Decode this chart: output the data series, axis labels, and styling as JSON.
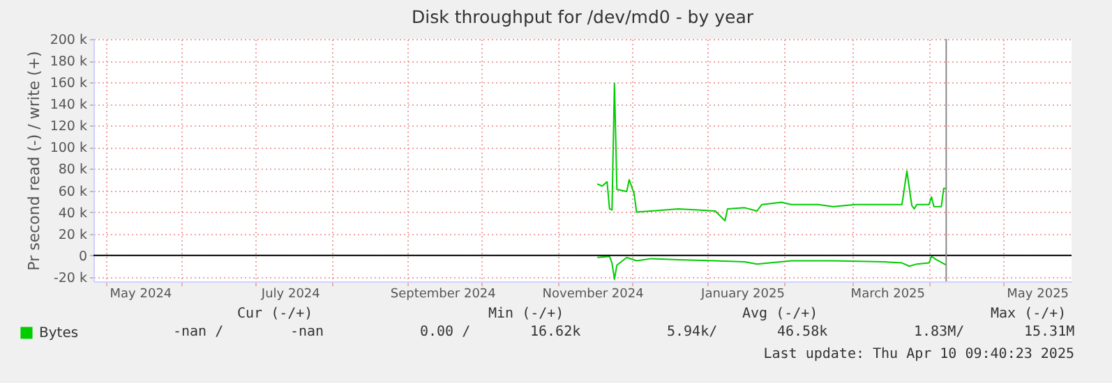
{
  "chart_data": {
    "type": "line",
    "title": "Disk throughput for /dev/md0 - by year",
    "ylabel": "Pr second read (-) / write (+)",
    "xlim": [
      "2024-04-26",
      "2025-05-29"
    ],
    "xticks": [
      {
        "value": "2024-05-01",
        "label": null
      },
      {
        "value": "2024-05-15",
        "label": "May 2024"
      },
      {
        "value": "2024-06-01",
        "label": null
      },
      {
        "value": "2024-07-01",
        "label": null
      },
      {
        "value": "2024-07-15",
        "label": "July 2024"
      },
      {
        "value": "2024-08-01",
        "label": null
      },
      {
        "value": "2024-09-01",
        "label": null
      },
      {
        "value": "2024-09-15",
        "label": "September 2024"
      },
      {
        "value": "2024-10-01",
        "label": null
      },
      {
        "value": "2024-11-01",
        "label": null
      },
      {
        "value": "2024-11-15",
        "label": "November 2024"
      },
      {
        "value": "2024-12-01",
        "label": null
      },
      {
        "value": "2025-01-01",
        "label": null
      },
      {
        "value": "2025-01-15",
        "label": "January 2025"
      },
      {
        "value": "2025-02-01",
        "label": null
      },
      {
        "value": "2025-03-01",
        "label": null
      },
      {
        "value": "2025-03-15",
        "label": "March 2025"
      },
      {
        "value": "2025-04-01",
        "label": null
      },
      {
        "value": "2025-05-01",
        "label": null
      },
      {
        "value": "2025-05-15",
        "label": "May 2025"
      }
    ],
    "ylim": [
      -24000,
      200000
    ],
    "yticks": [
      {
        "value": -20000,
        "label": "-20 k"
      },
      0,
      {
        "value": 20000,
        "label": "20 k"
      },
      {
        "value": 40000,
        "label": "40 k"
      },
      {
        "value": 60000,
        "label": "60 k"
      },
      {
        "value": 80000,
        "label": "80 k"
      },
      {
        "value": 100000,
        "label": "100 k"
      },
      {
        "value": 120000,
        "label": "120 k"
      },
      {
        "value": 140000,
        "label": "140 k"
      },
      {
        "value": 160000,
        "label": "160 k"
      },
      {
        "value": 180000,
        "label": "180 k"
      },
      {
        "value": 200000,
        "label": "200 k"
      }
    ],
    "series": [
      {
        "name": "Bytes",
        "color": "#00cc00",
        "x": [
          "2024-11-17",
          "2024-11-19",
          "2024-11-21",
          "2024-11-22",
          "2024-11-23",
          "2024-11-24",
          "2024-11-25",
          "2024-11-29",
          "2024-11-30",
          "2024-12-02",
          "2024-12-03",
          "2024-12-09",
          "2024-12-20",
          "2025-01-04",
          "2025-01-08",
          "2025-01-09",
          "2025-01-16",
          "2025-01-21",
          "2025-01-23",
          "2025-01-31",
          "2025-02-04",
          "2025-02-15",
          "2025-02-21",
          "2025-03-02",
          "2025-03-14",
          "2025-03-21",
          "2025-03-23",
          "2025-03-25",
          "2025-03-26",
          "2025-03-27",
          "2025-04-01",
          "2025-04-02",
          "2025-04-03",
          "2025-04-06",
          "2025-04-07",
          "2025-04-08"
        ],
        "values": [
          66000,
          64000,
          68000,
          43000,
          42000,
          159000,
          61000,
          59000,
          70000,
          57000,
          40000,
          41000,
          43000,
          41000,
          32000,
          43000,
          44000,
          41000,
          47000,
          49000,
          47000,
          47000,
          45000,
          47000,
          47000,
          47000,
          78000,
          46000,
          43000,
          47000,
          47000,
          54000,
          45000,
          45000,
          62000,
          62000
        ]
      },
      {
        "color": "#00cc00",
        "x": [
          "2024-11-17",
          "2024-11-22",
          "2024-11-23",
          "2024-11-24",
          "2024-11-25",
          "2024-11-29",
          "2024-12-03",
          "2024-12-09",
          "2024-12-20",
          "2025-01-04",
          "2025-01-16",
          "2025-01-21",
          "2025-02-04",
          "2025-02-21",
          "2025-03-14",
          "2025-03-21",
          "2025-03-24",
          "2025-03-27",
          "2025-04-01",
          "2025-04-02",
          "2025-04-04",
          "2025-04-08"
        ],
        "values": [
          -2000,
          -1000,
          -7000,
          -22000,
          -9000,
          -2000,
          -5000,
          -3000,
          -4000,
          -5000,
          -6000,
          -8000,
          -5000,
          -5000,
          -6000,
          -7000,
          -10000,
          -8000,
          -7000,
          -1000,
          -4000,
          -9000
        ]
      }
    ],
    "ref_lines": [
      {
        "axis": "y",
        "value": 0,
        "color": "#000000"
      },
      {
        "axis": "x",
        "value": "2025-04-08",
        "color": "#888888"
      }
    ],
    "grid": true,
    "legend": "bottom left",
    "marker": "none",
    "line_style": "solid",
    "annotations": [
      "Cur (-/+)",
      "Min (-/+)",
      "Avg (-/+)",
      "Max (-/+)",
      "-nan /",
      "-nan",
      "0.00 /",
      "16.62k",
      "5.94k/",
      "46.58k",
      "1.83M/",
      "15.31M",
      "Last update: Thu Apr 10 09:40:23 2025"
    ]
  }
}
